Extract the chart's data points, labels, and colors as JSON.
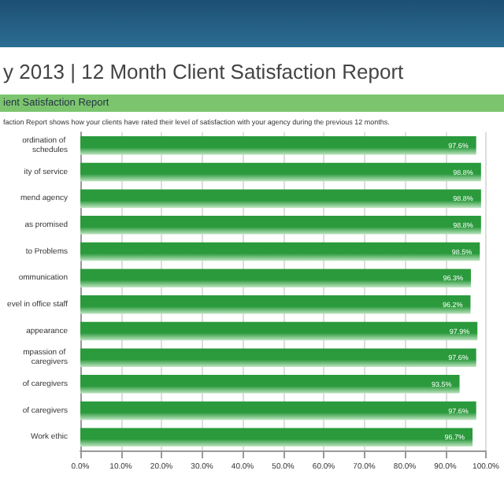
{
  "chart_data": {
    "type": "bar",
    "orientation": "horizontal",
    "title": "y 2013 | 12 Month Client Satisfaction Report",
    "subtitle": "ient Satisfaction Report",
    "annotations": [
      "faction Report shows how your clients have rated their level of satisfaction with your agency during the previous 12 months."
    ],
    "categories": [
      "ordination of schedules",
      "ity of service",
      "mend agency",
      "as promised",
      "to Problems",
      "ommunication",
      "evel in office staff",
      "appearance",
      "mpassion of caregivers",
      "of caregivers",
      "of caregivers",
      "Work ethic"
    ],
    "values": [
      97.6,
      98.8,
      98.8,
      98.8,
      98.5,
      96.3,
      96.2,
      97.9,
      97.6,
      93.5,
      97.6,
      96.7
    ],
    "value_labels": [
      "97.6%",
      "98.8%",
      "98.8%",
      "98.8%",
      "98.5%",
      "96.3%",
      "96.2%",
      "97.9%",
      "97.6%",
      "93.5%",
      "97.6%",
      "96.7%"
    ],
    "color": "#2a9a3c",
    "xlim": [
      0,
      100
    ],
    "xticks": [
      {
        "value": 0,
        "label": "0.0%"
      },
      {
        "value": 10,
        "label": "10.0%"
      },
      {
        "value": 20,
        "label": "20.0%"
      },
      {
        "value": 30,
        "label": "30.0%"
      },
      {
        "value": 40,
        "label": "40.0%"
      },
      {
        "value": 50,
        "label": "50.0%"
      },
      {
        "value": 60,
        "label": "60.0%"
      },
      {
        "value": 70,
        "label": "70.0%"
      },
      {
        "value": 80,
        "label": "80.0%"
      },
      {
        "value": 90,
        "label": "90.0%"
      },
      {
        "value": 100,
        "label": "100.0%"
      }
    ],
    "grid": "x"
  }
}
